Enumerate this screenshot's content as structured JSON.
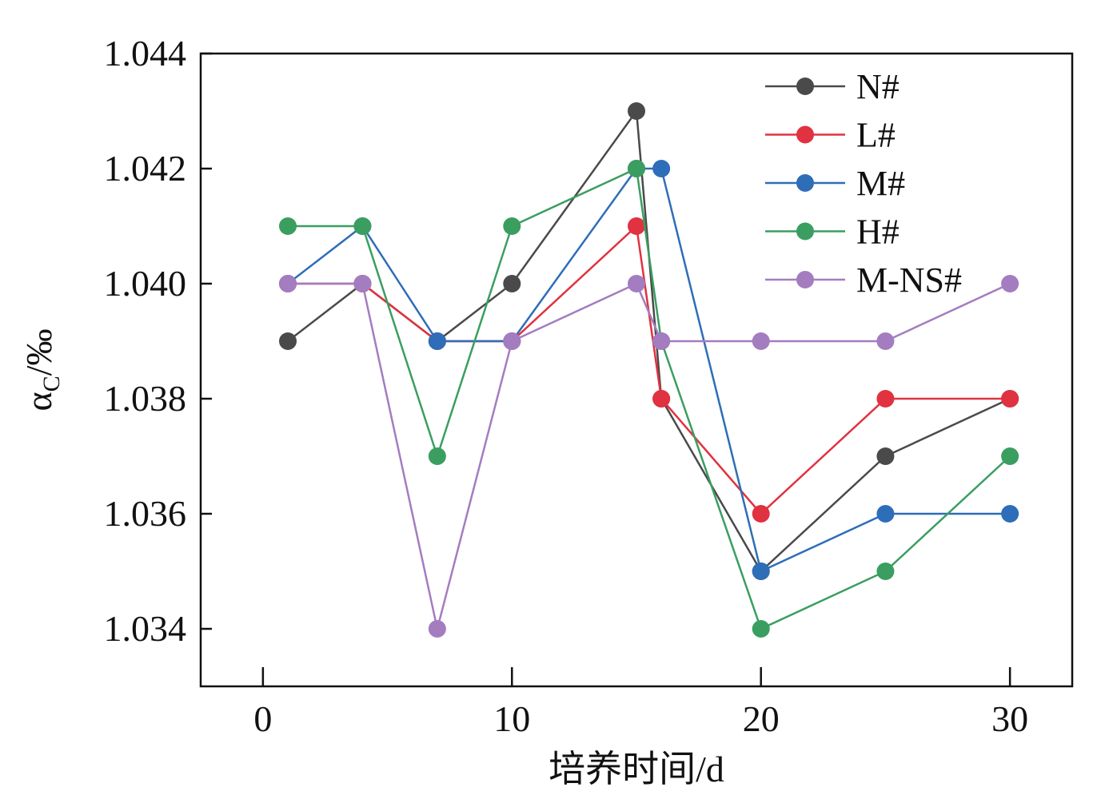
{
  "chart_data": {
    "type": "line",
    "title": "",
    "xlabel": "培养时间/d",
    "ylabel": {
      "main": "α",
      "sub": "C",
      "unit": "/‰"
    },
    "xlim": [
      -2.5,
      32.5
    ],
    "ylim": [
      1.033,
      1.044
    ],
    "xticks": [
      0,
      10,
      20,
      30
    ],
    "yticks": [
      1.034,
      1.036,
      1.038,
      1.04,
      1.042,
      1.044
    ],
    "ytick_labels": [
      "1.034",
      "1.036",
      "1.038",
      "1.040",
      "1.042",
      "1.044"
    ],
    "legend_position": "top-right",
    "grid": false,
    "series": [
      {
        "name": "N#",
        "color": "#4a4a4a",
        "x": [
          1,
          4,
          7,
          10,
          15,
          16,
          20,
          25,
          30
        ],
        "y": [
          1.039,
          1.04,
          1.039,
          1.04,
          1.043,
          1.038,
          1.035,
          1.037,
          1.038
        ]
      },
      {
        "name": "L#",
        "color": "#e03240",
        "x": [
          1,
          4,
          7,
          10,
          15,
          16,
          20,
          25,
          30
        ],
        "y": [
          1.04,
          1.04,
          1.039,
          1.039,
          1.041,
          1.038,
          1.036,
          1.038,
          1.038
        ]
      },
      {
        "name": "M#",
        "color": "#2e6db8",
        "x": [
          1,
          4,
          7,
          10,
          15,
          16,
          20,
          25,
          30
        ],
        "y": [
          1.04,
          1.041,
          1.039,
          1.039,
          1.042,
          1.042,
          1.035,
          1.036,
          1.036
        ]
      },
      {
        "name": "H#",
        "color": "#3a9e60",
        "x": [
          1,
          4,
          7,
          10,
          15,
          16,
          20,
          25,
          30
        ],
        "y": [
          1.041,
          1.041,
          1.037,
          1.041,
          1.042,
          1.039,
          1.034,
          1.035,
          1.037
        ]
      },
      {
        "name": "M-NS#",
        "color": "#a47cc0",
        "x": [
          1,
          4,
          7,
          10,
          15,
          16,
          20,
          25,
          30
        ],
        "y": [
          1.04,
          1.04,
          1.034,
          1.039,
          1.04,
          1.039,
          1.039,
          1.039,
          1.04
        ]
      }
    ]
  }
}
